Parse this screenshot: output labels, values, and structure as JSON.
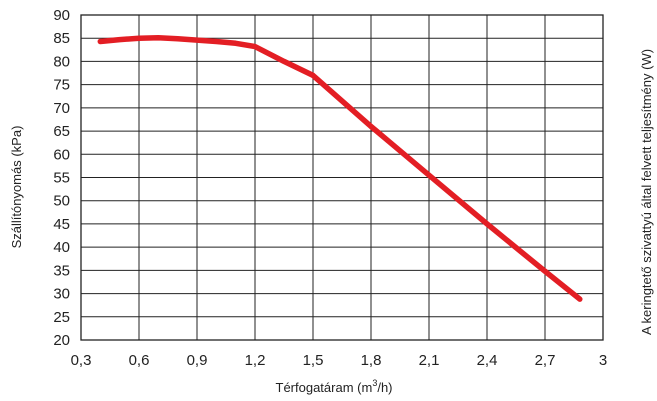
{
  "chart_data": {
    "type": "line",
    "xlabel_main": "Térfogatáram (m",
    "xlabel_sup": "3",
    "xlabel_tail": "/h)",
    "ylabel": "Szállítónyomás (kPa)",
    "y2label": "A keringtető szivattyú által felvett teljesítmény (W)",
    "xlim": [
      0.3,
      3.0
    ],
    "ylim": [
      20,
      90
    ],
    "x_ticks": [
      0.3,
      0.6,
      0.9,
      1.2,
      1.5,
      1.8,
      2.1,
      2.4,
      2.7,
      3.0
    ],
    "x_tick_labels": [
      "0,3",
      "0,6",
      "0,9",
      "1,2",
      "1,5",
      "1,8",
      "2,1",
      "2,4",
      "2,7",
      "3"
    ],
    "y_ticks": [
      20,
      25,
      30,
      35,
      40,
      45,
      50,
      55,
      60,
      65,
      70,
      75,
      80,
      85,
      90
    ],
    "y_tick_labels": [
      "20",
      "25",
      "30",
      "35",
      "40",
      "45",
      "50",
      "55",
      "60",
      "65",
      "70",
      "75",
      "80",
      "85",
      "90"
    ],
    "grid": true,
    "series": [
      {
        "color": "#e31e24",
        "x": [
          0.4,
          0.5,
          0.6,
          0.7,
          0.8,
          0.9,
          1.0,
          1.1,
          1.2,
          1.35,
          1.5,
          1.65,
          1.8,
          2.1,
          2.4,
          2.7,
          2.88
        ],
        "y": [
          84.3,
          84.7,
          85.0,
          85.1,
          84.9,
          84.6,
          84.3,
          83.9,
          83.2,
          80.0,
          77.0,
          71.5,
          66.0,
          55.5,
          45.0,
          34.8,
          28.8
        ]
      }
    ]
  }
}
